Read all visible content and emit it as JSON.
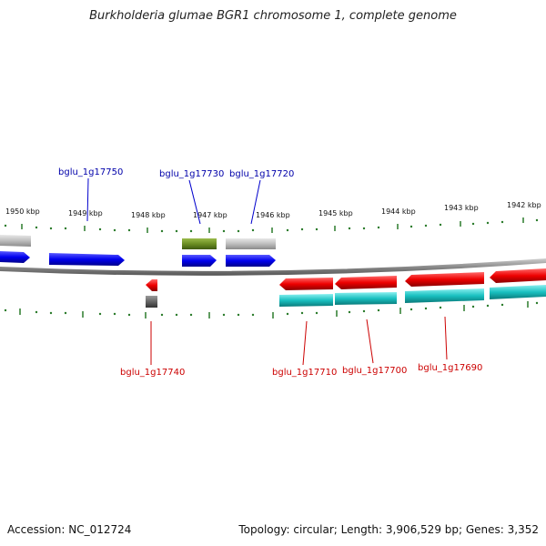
{
  "title": "Burkholderia glumae BGR1 chromosome 1, complete genome",
  "footer": {
    "accession": "Accession: NC_012724",
    "summary": "Topology: circular; Length: 3,906,529 bp; Genes: 3,352"
  },
  "colors": {
    "backbone": "#8a8a8a",
    "tick": "#2a7a2a",
    "forward_gene": "#0000ee",
    "reverse_gene": "#ee0000",
    "cds_cyan": "#19c0c0",
    "pseudo_gray": "#bdbdbd",
    "rna_green": "#6b8e23",
    "dark_gray": "#666666",
    "label_forward": "#0000aa",
    "label_reverse": "#cc0000"
  },
  "ticks": [
    "1950 kbp",
    "1949 kbp",
    "1948 kbp",
    "1947 kbp",
    "1946 kbp",
    "1945 kbp",
    "1944 kbp",
    "1943 kbp",
    "1942 kbp"
  ],
  "gene_labels": {
    "top": [
      "bglu_1g17750",
      "bglu_1g17730",
      "bglu_1g17720"
    ],
    "bottom": [
      "bglu_1g17740",
      "bglu_1g17710",
      "bglu_1g17700",
      "bglu_1g17690"
    ]
  }
}
